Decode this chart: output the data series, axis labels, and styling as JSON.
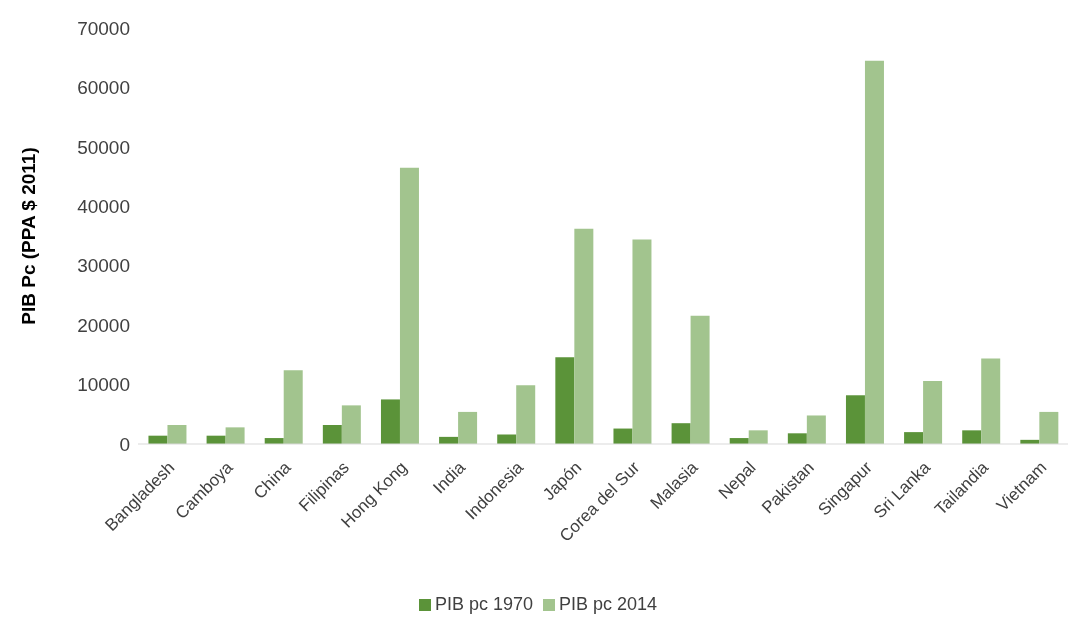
{
  "chart_data": {
    "type": "bar",
    "ylabel": "PIB Pc (PPA $ 2011)",
    "categories": [
      "Bangladesh",
      "Camboya",
      "China",
      "Filipinas",
      "Hong Kong",
      "India",
      "Indonesia",
      "Japón",
      "Corea del Sur",
      "Malasia",
      "Nepal",
      "Pakistan",
      "Singapur",
      "Sri Lanka",
      "Tailandia",
      "Vietnam"
    ],
    "series": [
      {
        "name": "PIB pc 1970",
        "color": "#5b9339",
        "values": [
          1400,
          1400,
          1000,
          3200,
          7500,
          1200,
          1600,
          14600,
          2600,
          3500,
          1000,
          1800,
          8200,
          2000,
          2300,
          700
        ]
      },
      {
        "name": "PIB pc 2014",
        "color": "#a2c48e",
        "values": [
          3200,
          2800,
          12400,
          6500,
          46500,
          5400,
          9900,
          36200,
          34400,
          21600,
          2300,
          4800,
          64500,
          10600,
          14400,
          5400
        ]
      }
    ],
    "ylim": [
      0,
      70000
    ],
    "yticks": [
      0,
      10000,
      20000,
      30000,
      40000,
      50000,
      60000,
      70000
    ],
    "legend": "bottom"
  }
}
